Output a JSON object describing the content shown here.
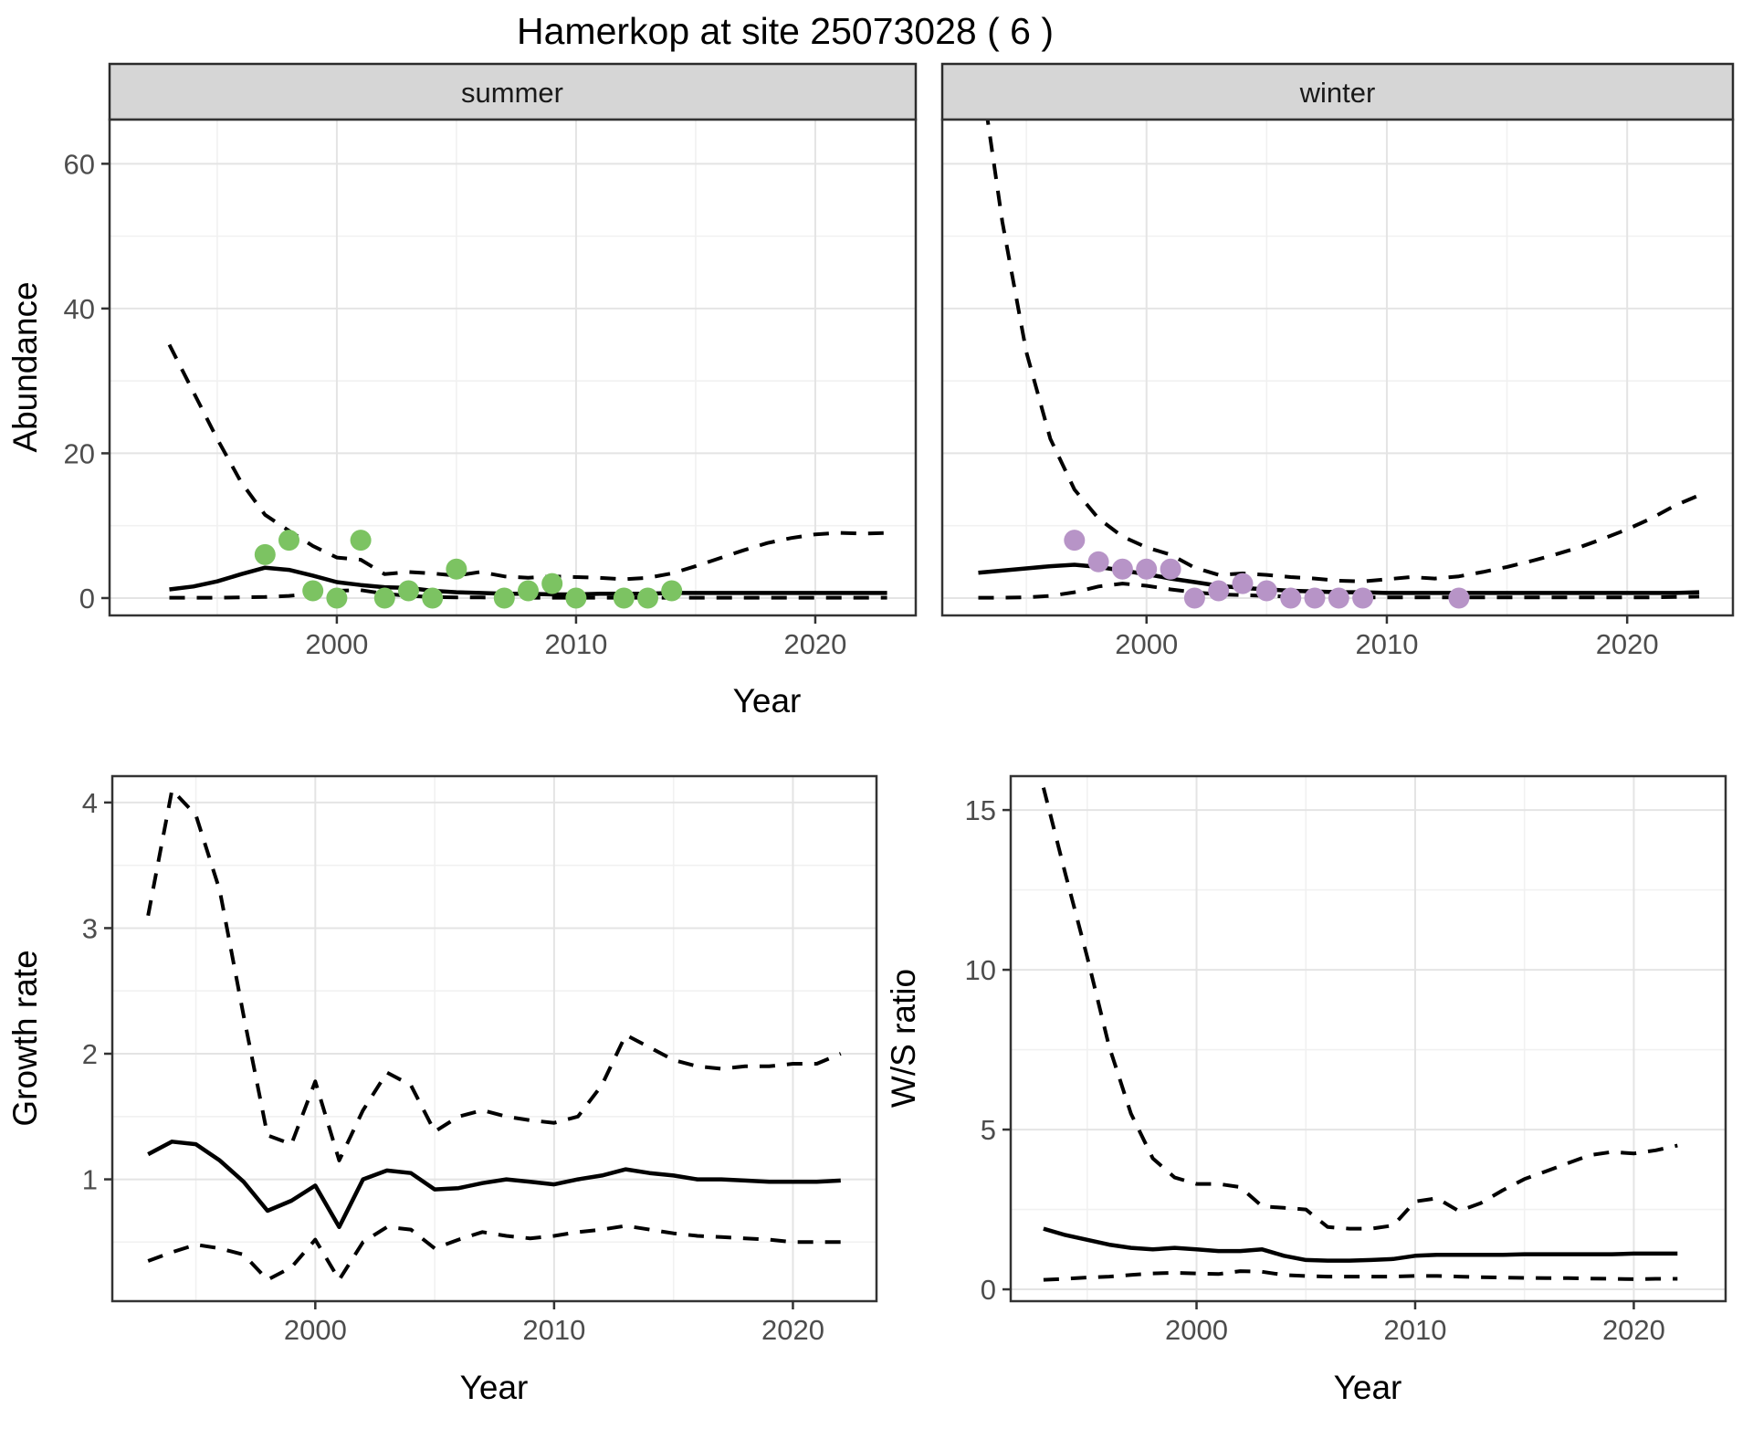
{
  "title": "Hamerkop at site 25073028 ( 6 )",
  "colors": {
    "summer_points": "#7CC362",
    "winter_points": "#B794C7",
    "line": "#000000",
    "strip_bg": "#D6D6D6",
    "tick_text": "#4D4D4D"
  },
  "chart_data": [
    {
      "id": "abundance-summer",
      "type": "line",
      "facet_label": "summer",
      "xlabel": "Year",
      "ylabel": "Abundance",
      "x_domain": [
        1990.5,
        2024.2
      ],
      "y_domain": [
        -2.4,
        66.1
      ],
      "x_ticks": [
        2000,
        2010,
        2020
      ],
      "x_minor_ticks": [
        1995,
        2005,
        2015
      ],
      "y_ticks": [
        0,
        20,
        40,
        60
      ],
      "y_minor_ticks": [
        10,
        30,
        50
      ],
      "series": [
        {
          "name": "median",
          "style": "solid",
          "x": [
            1993,
            1994,
            1995,
            1996,
            1997,
            1998,
            1999,
            2000,
            2001,
            2002,
            2003,
            2004,
            2005,
            2006,
            2007,
            2008,
            2009,
            2010,
            2011,
            2012,
            2013,
            2014,
            2015,
            2016,
            2017,
            2018,
            2019,
            2020,
            2021,
            2022,
            2023
          ],
          "y": [
            1.2,
            1.6,
            2.3,
            3.3,
            4.2,
            3.9,
            3.1,
            2.2,
            1.8,
            1.5,
            1.4,
            1.0,
            0.8,
            0.7,
            0.6,
            0.6,
            0.5,
            0.5,
            0.6,
            0.6,
            0.6,
            0.7,
            0.7,
            0.7,
            0.7,
            0.7,
            0.7,
            0.7,
            0.7,
            0.7,
            0.7
          ]
        },
        {
          "name": "upper-95ci",
          "style": "dashed",
          "x": [
            1993,
            1994,
            1995,
            1996,
            1997,
            1998,
            1999,
            2000,
            2001,
            2002,
            2003,
            2004,
            2005,
            2006,
            2007,
            2008,
            2009,
            2010,
            2011,
            2012,
            2013,
            2014,
            2015,
            2016,
            2017,
            2018,
            2019,
            2020,
            2021,
            2022,
            2023
          ],
          "y": [
            35,
            28.5,
            22,
            16,
            11.5,
            9.3,
            7.2,
            5.6,
            5.3,
            3.3,
            3.6,
            3.4,
            3.1,
            3.6,
            3.0,
            2.8,
            3.0,
            2.9,
            2.8,
            2.6,
            2.8,
            3.4,
            4.4,
            5.5,
            6.6,
            7.6,
            8.3,
            8.8,
            9.0,
            8.9,
            9.0
          ]
        },
        {
          "name": "lower-95ci",
          "style": "dashed",
          "x": [
            1993,
            1994,
            1995,
            1996,
            1997,
            1998,
            1999,
            2000,
            2001,
            2002,
            2003,
            2004,
            2005,
            2006,
            2007,
            2008,
            2009,
            2010,
            2011,
            2012,
            2013,
            2014,
            2015,
            2016,
            2017,
            2018,
            2019,
            2020,
            2021,
            2022,
            2023
          ],
          "y": [
            0.05,
            0.05,
            0.05,
            0.1,
            0.15,
            0.3,
            0.6,
            1.0,
            1.1,
            0.6,
            0.3,
            0.15,
            0.1,
            0.08,
            0.06,
            0.05,
            0.05,
            0.05,
            0.05,
            0.05,
            0.05,
            0.05,
            0.05,
            0.05,
            0.05,
            0.05,
            0.05,
            0.05,
            0.05,
            0.05,
            0.05
          ]
        }
      ],
      "points": {
        "name": "observed-counts-summer",
        "color_key": "summer_points",
        "x": [
          1997,
          1998,
          1999,
          2000,
          2001,
          2002,
          2003,
          2004,
          2005,
          2007,
          2008,
          2009,
          2010,
          2012,
          2013,
          2014
        ],
        "y": [
          6,
          8,
          1,
          0,
          8,
          0,
          1,
          0,
          4,
          0,
          1,
          2,
          0,
          0,
          0,
          1
        ]
      }
    },
    {
      "id": "abundance-winter",
      "type": "line",
      "facet_label": "winter",
      "xlabel": "Year",
      "ylabel": "Abundance",
      "x_domain": [
        1991.5,
        2024.4
      ],
      "y_domain": [
        -2.4,
        66.1
      ],
      "x_ticks": [
        2000,
        2010,
        2020
      ],
      "x_minor_ticks": [
        1995,
        2005,
        2015
      ],
      "y_ticks": [
        0,
        20,
        40,
        60
      ],
      "y_minor_ticks": [
        10,
        30,
        50
      ],
      "series": [
        {
          "name": "median",
          "style": "solid",
          "x": [
            1993,
            1994,
            1995,
            1996,
            1997,
            1998,
            1999,
            2000,
            2001,
            2002,
            2003,
            2004,
            2005,
            2006,
            2007,
            2008,
            2009,
            2010,
            2011,
            2012,
            2013,
            2014,
            2015,
            2016,
            2017,
            2018,
            2019,
            2020,
            2021,
            2022,
            2023
          ],
          "y": [
            3.5,
            3.8,
            4.1,
            4.4,
            4.6,
            4.3,
            3.8,
            3.3,
            2.7,
            2.2,
            1.7,
            1.4,
            1.2,
            1.0,
            0.9,
            0.8,
            0.8,
            0.7,
            0.7,
            0.7,
            0.7,
            0.7,
            0.7,
            0.7,
            0.7,
            0.7,
            0.7,
            0.7,
            0.7,
            0.7,
            0.8
          ]
        },
        {
          "name": "upper-95ci",
          "style": "dashed",
          "x": [
            1993,
            1994,
            1995,
            1996,
            1997,
            1998,
            1999,
            2000,
            2001,
            2002,
            2003,
            2004,
            2005,
            2006,
            2007,
            2008,
            2009,
            2010,
            2011,
            2012,
            2013,
            2014,
            2015,
            2016,
            2017,
            2018,
            2019,
            2020,
            2021,
            2022,
            2023
          ],
          "y": [
            75,
            52,
            34,
            22,
            15,
            11,
            8.5,
            7,
            6,
            4.2,
            3.2,
            3.4,
            3.2,
            2.9,
            2.7,
            2.4,
            2.3,
            2.6,
            2.9,
            2.7,
            3.0,
            3.6,
            4.3,
            5.1,
            6.0,
            7.0,
            8.2,
            9.5,
            11,
            12.8,
            14.2
          ]
        },
        {
          "name": "lower-95ci",
          "style": "dashed",
          "x": [
            1993,
            1994,
            1995,
            1996,
            1997,
            1998,
            1999,
            2000,
            2001,
            2002,
            2003,
            2004,
            2005,
            2006,
            2007,
            2008,
            2009,
            2010,
            2011,
            2012,
            2013,
            2014,
            2015,
            2016,
            2017,
            2018,
            2019,
            2020,
            2021,
            2022,
            2023
          ],
          "y": [
            0.05,
            0.05,
            0.1,
            0.3,
            0.8,
            1.6,
            2.0,
            1.7,
            1.2,
            0.8,
            0.5,
            0.4,
            0.3,
            0.2,
            0.15,
            0.1,
            0.1,
            0.1,
            0.1,
            0.1,
            0.1,
            0.1,
            0.1,
            0.1,
            0.1,
            0.1,
            0.1,
            0.1,
            0.1,
            0.15,
            0.2
          ]
        }
      ],
      "points": {
        "name": "observed-counts-winter",
        "color_key": "winter_points",
        "x": [
          1997,
          1998,
          1999,
          2000,
          2001,
          2002,
          2003,
          2004,
          2005,
          2006,
          2007,
          2008,
          2009,
          2013
        ],
        "y": [
          8,
          5,
          4,
          4,
          4,
          0,
          1,
          2,
          1,
          0,
          0,
          0,
          0,
          0
        ]
      }
    },
    {
      "id": "growth-rate",
      "type": "line",
      "facet_label": "",
      "xlabel": "Year",
      "ylabel": "Growth rate",
      "x_domain": [
        1991.5,
        2023.5
      ],
      "y_domain": [
        0.03,
        4.21
      ],
      "x_ticks": [
        2000,
        2010,
        2020
      ],
      "x_minor_ticks": [
        1995,
        2005,
        2015
      ],
      "y_ticks": [
        1,
        2,
        3,
        4
      ],
      "y_minor_ticks": [
        0.5,
        1.5,
        2.5,
        3.5
      ],
      "series": [
        {
          "name": "median",
          "style": "solid",
          "x": [
            1993,
            1994,
            1995,
            1996,
            1997,
            1998,
            1999,
            2000,
            2001,
            2002,
            2003,
            2004,
            2005,
            2006,
            2007,
            2008,
            2009,
            2010,
            2011,
            2012,
            2013,
            2014,
            2015,
            2016,
            2017,
            2018,
            2019,
            2020,
            2021,
            2022
          ],
          "y": [
            1.2,
            1.3,
            1.28,
            1.15,
            0.98,
            0.75,
            0.83,
            0.95,
            0.62,
            1.0,
            1.07,
            1.05,
            0.92,
            0.93,
            0.97,
            1.0,
            0.98,
            0.96,
            1.0,
            1.03,
            1.08,
            1.05,
            1.03,
            1.0,
            1.0,
            0.99,
            0.98,
            0.98,
            0.98,
            0.99
          ]
        },
        {
          "name": "upper-95ci",
          "style": "dashed",
          "x": [
            1993,
            1994,
            1995,
            1996,
            1997,
            1998,
            1999,
            2000,
            2001,
            2002,
            2003,
            2004,
            2005,
            2006,
            2007,
            2008,
            2009,
            2010,
            2011,
            2012,
            2013,
            2014,
            2015,
            2016,
            2017,
            2018,
            2019,
            2020,
            2021,
            2022
          ],
          "y": [
            3.1,
            4.1,
            3.9,
            3.3,
            2.3,
            1.35,
            1.28,
            1.78,
            1.15,
            1.55,
            1.85,
            1.75,
            1.38,
            1.5,
            1.55,
            1.5,
            1.47,
            1.45,
            1.5,
            1.75,
            2.15,
            2.05,
            1.95,
            1.9,
            1.88,
            1.9,
            1.9,
            1.92,
            1.92,
            2.0
          ]
        },
        {
          "name": "lower-95ci",
          "style": "dashed",
          "x": [
            1993,
            1994,
            1995,
            1996,
            1997,
            1998,
            1999,
            2000,
            2001,
            2002,
            2003,
            2004,
            2005,
            2006,
            2007,
            2008,
            2009,
            2010,
            2011,
            2012,
            2013,
            2014,
            2015,
            2016,
            2017,
            2018,
            2019,
            2020,
            2021,
            2022
          ],
          "y": [
            0.35,
            0.42,
            0.48,
            0.45,
            0.4,
            0.2,
            0.3,
            0.52,
            0.2,
            0.5,
            0.62,
            0.6,
            0.45,
            0.52,
            0.58,
            0.55,
            0.53,
            0.55,
            0.58,
            0.6,
            0.63,
            0.6,
            0.57,
            0.55,
            0.54,
            0.53,
            0.52,
            0.5,
            0.5,
            0.5
          ]
        }
      ]
    },
    {
      "id": "ws-ratio",
      "type": "line",
      "facet_label": "",
      "xlabel": "Year",
      "ylabel": "W/S ratio",
      "x_domain": [
        1991.5,
        2024.2
      ],
      "y_domain": [
        -0.37,
        16.06
      ],
      "x_ticks": [
        2000,
        2010,
        2020
      ],
      "x_minor_ticks": [
        1995,
        2005,
        2015
      ],
      "y_ticks": [
        0,
        5,
        10,
        15
      ],
      "y_minor_ticks": [
        2.5,
        7.5,
        12.5
      ],
      "series": [
        {
          "name": "median",
          "style": "solid",
          "x": [
            1993,
            1994,
            1995,
            1996,
            1997,
            1998,
            1999,
            2000,
            2001,
            2002,
            2003,
            2004,
            2005,
            2006,
            2007,
            2008,
            2009,
            2010,
            2011,
            2012,
            2013,
            2014,
            2015,
            2016,
            2017,
            2018,
            2019,
            2020,
            2021,
            2022
          ],
          "y": [
            1.9,
            1.7,
            1.55,
            1.4,
            1.3,
            1.25,
            1.3,
            1.25,
            1.2,
            1.2,
            1.25,
            1.05,
            0.92,
            0.9,
            0.9,
            0.92,
            0.95,
            1.05,
            1.08,
            1.08,
            1.08,
            1.08,
            1.1,
            1.1,
            1.1,
            1.1,
            1.1,
            1.12,
            1.12,
            1.12
          ]
        },
        {
          "name": "upper-95ci",
          "style": "dashed",
          "x": [
            1993,
            1994,
            1995,
            1996,
            1997,
            1998,
            1999,
            2000,
            2001,
            2002,
            2003,
            2004,
            2005,
            2006,
            2007,
            2008,
            2009,
            2010,
            2011,
            2012,
            2013,
            2014,
            2015,
            2016,
            2017,
            2018,
            2019,
            2020,
            2021,
            2022
          ],
          "y": [
            15.7,
            13.0,
            10.4,
            7.6,
            5.5,
            4.1,
            3.5,
            3.3,
            3.3,
            3.2,
            2.6,
            2.55,
            2.5,
            1.95,
            1.9,
            1.9,
            2.0,
            2.75,
            2.85,
            2.45,
            2.7,
            3.1,
            3.45,
            3.7,
            3.95,
            4.2,
            4.3,
            4.25,
            4.35,
            4.5
          ]
        },
        {
          "name": "lower-95ci",
          "style": "dashed",
          "x": [
            1993,
            1994,
            1995,
            1996,
            1997,
            1998,
            1999,
            2000,
            2001,
            2002,
            2003,
            2004,
            2005,
            2006,
            2007,
            2008,
            2009,
            2010,
            2011,
            2012,
            2013,
            2014,
            2015,
            2016,
            2017,
            2018,
            2019,
            2020,
            2021,
            2022
          ],
          "y": [
            0.3,
            0.33,
            0.37,
            0.4,
            0.45,
            0.5,
            0.52,
            0.5,
            0.48,
            0.57,
            0.55,
            0.45,
            0.42,
            0.4,
            0.4,
            0.4,
            0.4,
            0.42,
            0.42,
            0.4,
            0.38,
            0.37,
            0.36,
            0.35,
            0.35,
            0.34,
            0.33,
            0.32,
            0.33,
            0.33
          ]
        }
      ]
    }
  ]
}
